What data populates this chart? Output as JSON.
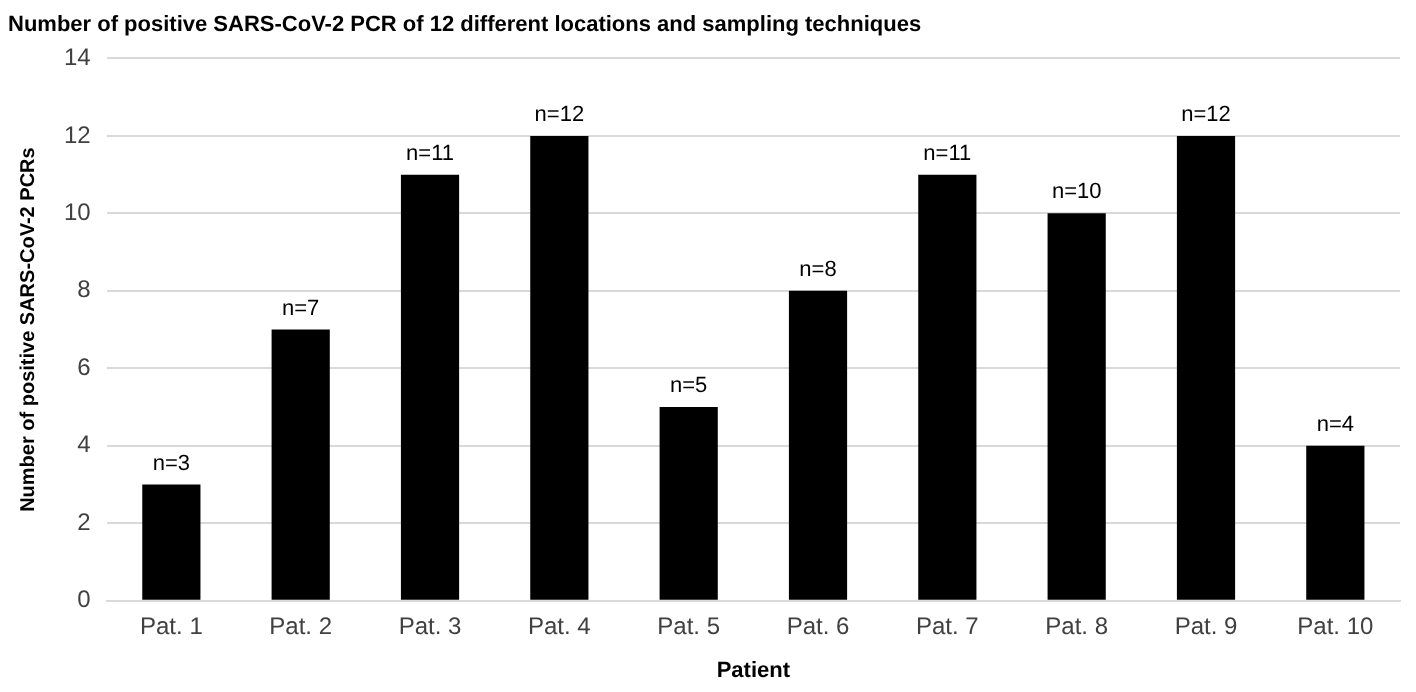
{
  "chart_data": {
    "type": "bar",
    "title": "Number of positive SARS-CoV-2 PCR of 12 different locations and sampling techniques",
    "xlabel": "Patient",
    "ylabel": "Number of positive SARS-CoV-2 PCRs",
    "categories": [
      "Pat. 1",
      "Pat. 2",
      "Pat. 3",
      "Pat. 4",
      "Pat. 5",
      "Pat. 6",
      "Pat. 7",
      "Pat. 8",
      "Pat. 9",
      "Pat. 10"
    ],
    "values": [
      3,
      7,
      11,
      12,
      5,
      8,
      11,
      10,
      12,
      4
    ],
    "value_labels": [
      "n=3",
      "n=7",
      "n=11",
      "n=12",
      "n=5",
      "n=8",
      "n=11",
      "n=10",
      "n=12",
      "n=4"
    ],
    "color": "#000000",
    "ylim": [
      0,
      14
    ],
    "yticks": [
      0,
      2,
      4,
      6,
      8,
      10,
      12,
      14
    ],
    "grid": "y"
  }
}
